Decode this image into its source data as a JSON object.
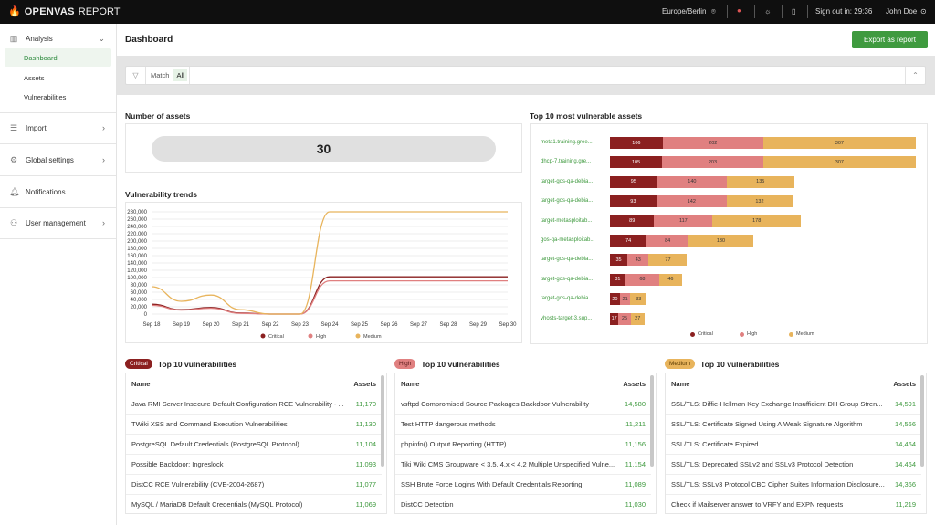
{
  "app": {
    "title_bold": "OPENVAS",
    "title_light": "REPORT",
    "timezone": "Europe/Berlin",
    "signout": "Sign out in: 29:36",
    "user": "John Doe"
  },
  "sidebar": {
    "analysis": "Analysis",
    "dashboard": "Dashboard",
    "assets": "Assets",
    "vulnerabilities": "Vulnerabilities",
    "import": "Import",
    "global_settings": "Global settings",
    "notifications": "Notifications",
    "user_management": "User management"
  },
  "header": {
    "title": "Dashboard",
    "export": "Export as report"
  },
  "filter": {
    "match": "Match",
    "value": "All"
  },
  "assets_card": {
    "title": "Number of assets",
    "value": "30"
  },
  "colors": {
    "critical": "#8b2020",
    "high": "#e08080",
    "medium": "#e8b45c",
    "accent": "#3f9a3f"
  },
  "chart_data": [
    {
      "type": "line",
      "title": "Vulnerability trends",
      "categories": [
        "Sep 18",
        "Sep 19",
        "Sep 20",
        "Sep 21",
        "Sep 22",
        "Sep 23",
        "Sep 24",
        "Sep 25",
        "Sep 26",
        "Sep 27",
        "Sep 28",
        "Sep 29",
        "Sep 30"
      ],
      "yticks": [
        "0",
        "20,000",
        "40,000",
        "60,000",
        "80,000",
        "100,000",
        "120,000",
        "140,000",
        "160,000",
        "180,000",
        "200,000",
        "220,000",
        "240,000",
        "260,000",
        "280,000"
      ],
      "ylim": [
        0,
        280000
      ],
      "series": [
        {
          "name": "Critical",
          "color": "#8b2020",
          "values": [
            27000,
            12000,
            18000,
            3000,
            0,
            0,
            102000,
            102000,
            102000,
            102000,
            102000,
            102000,
            102000
          ]
        },
        {
          "name": "High",
          "color": "#e08080",
          "values": [
            24000,
            11000,
            16000,
            2000,
            0,
            0,
            91000,
            91000,
            91000,
            91000,
            91000,
            91000,
            91000
          ]
        },
        {
          "name": "Medium",
          "color": "#e8b45c",
          "values": [
            75000,
            35000,
            52000,
            12000,
            0,
            0,
            280000,
            280000,
            280000,
            280000,
            280000,
            280000,
            280000
          ]
        }
      ]
    },
    {
      "type": "bar",
      "stacked": true,
      "orientation": "horizontal",
      "title": "Top 10 most vulnerable assets",
      "categories": [
        "meta1.training.gree...",
        "dhcp-7.training.gre...",
        "target-gos-qa-debia...",
        "target-gos-qa-debia...",
        "target-metasploitab...",
        "gos-qa-metasploitab...",
        "target-gos-qa-debia...",
        "target-gos-qa-debia...",
        "target-gos-qa-debia...",
        "vhosts-target-3.sup..."
      ],
      "series": [
        {
          "name": "Critical",
          "color": "#8b2020",
          "values": [
            106,
            105,
            95,
            93,
            89,
            74,
            35,
            31,
            20,
            17
          ]
        },
        {
          "name": "High",
          "color": "#e08080",
          "values": [
            202,
            203,
            140,
            142,
            117,
            84,
            43,
            68,
            21,
            25
          ]
        },
        {
          "name": "Medium",
          "color": "#e8b45c",
          "values": [
            307,
            307,
            135,
            132,
            178,
            130,
            77,
            46,
            33,
            27
          ]
        }
      ]
    }
  ],
  "tables": [
    {
      "badge": "Critical",
      "badge_bg": "#8b2020",
      "badge_fg": "#fff",
      "title": "Top 10 vulnerabilities",
      "col_name": "Name",
      "col_assets": "Assets",
      "rows": [
        [
          "Java RMI Server Insecure Default Configuration RCE Vulnerability - ...",
          "11,170"
        ],
        [
          "TWiki XSS and Command Execution Vulnerabilities",
          "11,130"
        ],
        [
          "PostgreSQL Default Credentials (PostgreSQL Protocol)",
          "11,104"
        ],
        [
          "Possible Backdoor: Ingreslock",
          "11,093"
        ],
        [
          "DistCC RCE Vulnerability (CVE-2004-2687)",
          "11,077"
        ],
        [
          "MySQL / MariaDB Default Credentials (MySQL Protocol)",
          "11,069"
        ]
      ]
    },
    {
      "badge": "High",
      "badge_bg": "#e08080",
      "badge_fg": "#5a1a1a",
      "title": "Top 10 vulnerabilities",
      "col_name": "Name",
      "col_assets": "Assets",
      "rows": [
        [
          "vsftpd Compromised Source Packages Backdoor Vulnerability",
          "14,580"
        ],
        [
          "Test HTTP dangerous methods",
          "11,211"
        ],
        [
          "phpinfo() Output Reporting (HTTP)",
          "11,156"
        ],
        [
          "Tiki Wiki CMS Groupware < 3.5, 4.x < 4.2 Multiple Unspecified Vulne...",
          "11,154"
        ],
        [
          "SSH Brute Force Logins With Default Credentials Reporting",
          "11,089"
        ],
        [
          "DistCC Detection",
          "11,030"
        ]
      ]
    },
    {
      "badge": "Medium",
      "badge_bg": "#e8b45c",
      "badge_fg": "#5a3a00",
      "title": "Top 10 vulnerabilities",
      "col_name": "Name",
      "col_assets": "Assets",
      "rows": [
        [
          "SSL/TLS: Diffie-Hellman Key Exchange Insufficient DH Group Stren...",
          "14,591"
        ],
        [
          "SSL/TLS: Certificate Signed Using A Weak Signature Algorithm",
          "14,566"
        ],
        [
          "SSL/TLS: Certificate Expired",
          "14,464"
        ],
        [
          "SSL/TLS: Deprecated SSLv2 and SSLv3 Protocol Detection",
          "14,464"
        ],
        [
          "SSL/TLS: SSLv3 Protocol CBC Cipher Suites Information Disclosure...",
          "14,366"
        ],
        [
          "Check if Mailserver answer to VRFY and EXPN requests",
          "11,219"
        ]
      ]
    }
  ]
}
